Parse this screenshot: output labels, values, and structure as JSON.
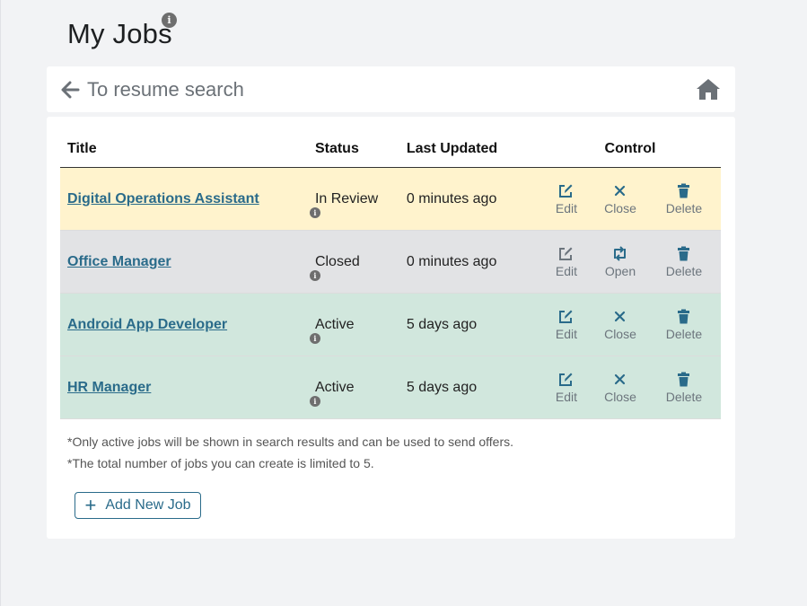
{
  "page": {
    "title": "My Jobs",
    "info_glyph": "i"
  },
  "nav": {
    "back_label": "To resume search",
    "home_icon": "home-icon"
  },
  "table": {
    "headers": {
      "title": "Title",
      "status": "Status",
      "updated": "Last Updated",
      "control": "Control"
    },
    "rows": [
      {
        "title": "Digital Operations Assistant",
        "status": "In Review",
        "updated": "0 minutes ago",
        "c1": "Edit",
        "c2": "Close",
        "c3": "Delete"
      },
      {
        "title": "Office Manager",
        "status": "Closed",
        "updated": "0 minutes ago",
        "c1": "Edit",
        "c2": "Open",
        "c3": "Delete"
      },
      {
        "title": "Android App Developer",
        "status": "Active",
        "updated": "5 days ago",
        "c1": "Edit",
        "c2": "Close",
        "c3": "Delete"
      },
      {
        "title": "HR Manager",
        "status": "Active",
        "updated": "5 days ago",
        "c1": "Edit",
        "c2": "Close",
        "c3": "Delete"
      }
    ]
  },
  "notes": [
    "*Only active jobs will be shown in search results and can be used to send offers.",
    "*The total number of jobs you can create is limited to 5."
  ],
  "add_button": {
    "label": "Add New Job"
  },
  "colors": {
    "accent": "#2a6b8a",
    "review": "#fff3cd",
    "closed": "#e2e3e5",
    "active": "#d1e7dd"
  }
}
